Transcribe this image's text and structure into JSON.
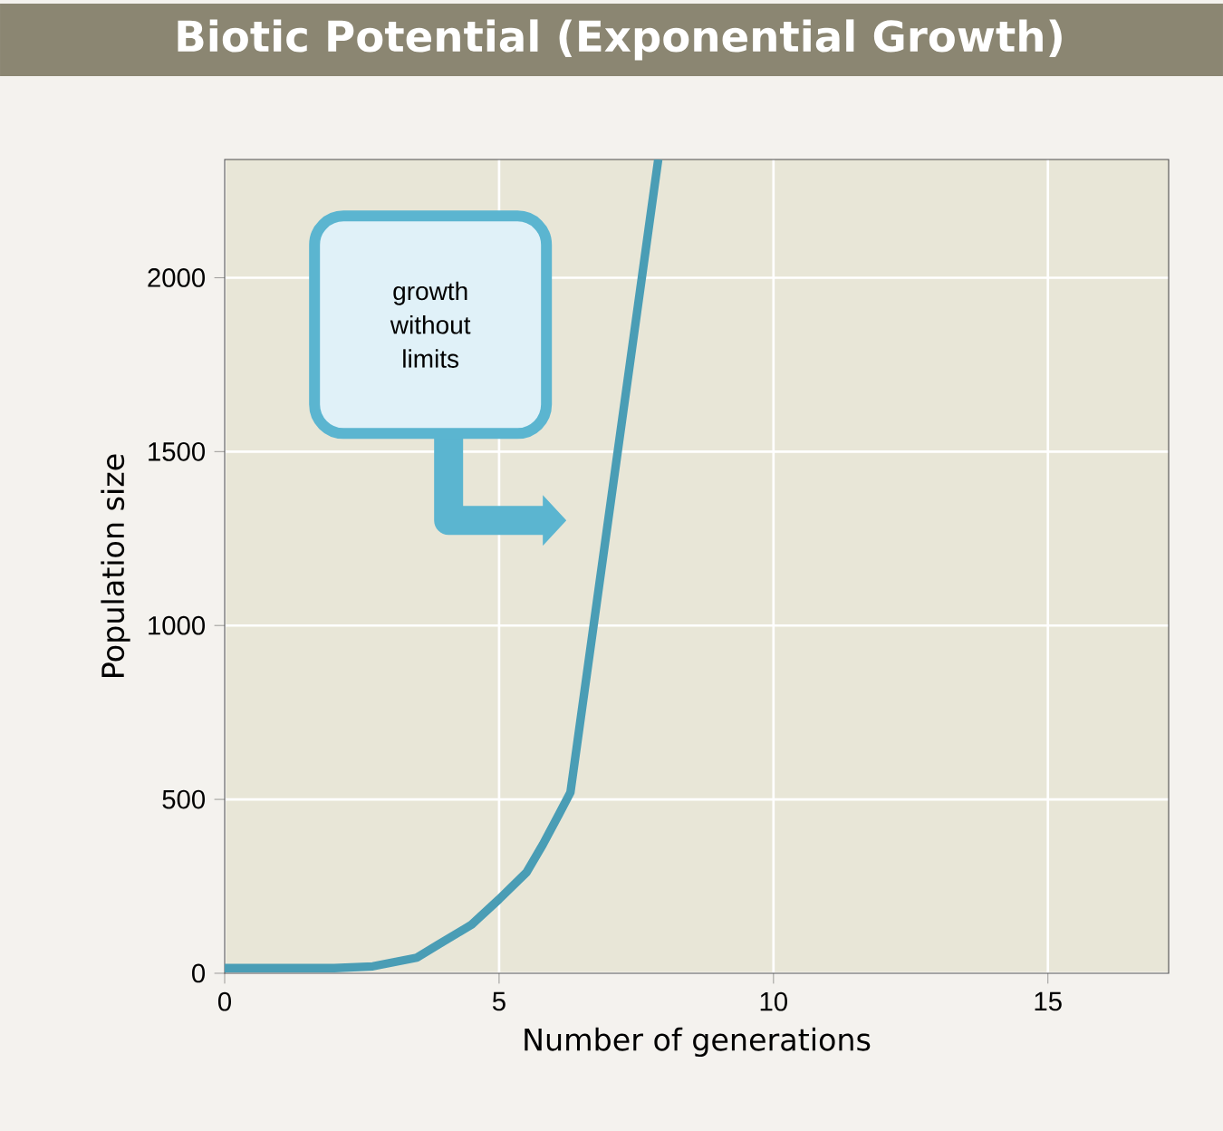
{
  "chart_data": {
    "type": "line",
    "title": "Biotic Potential  (Exponential Growth)",
    "xlabel": "Number of generations",
    "ylabel": "Population size",
    "x": [
      0,
      1,
      2,
      2.7,
      3.5,
      3.9,
      4.5,
      5,
      5.5,
      5.8,
      6.1,
      6.3,
      7.9
    ],
    "series": [
      {
        "color": "#4a9db5",
        "values": [
          15,
          15,
          15,
          20,
          45,
          83,
          140,
          213,
          290,
          371,
          460,
          520,
          2340
        ]
      }
    ],
    "xlim": [
      0,
      17.2
    ],
    "ylim": [
      0,
      2340
    ],
    "xticks": [
      0,
      5,
      10,
      15
    ],
    "yticks": [
      0,
      500,
      1000,
      1500,
      2000
    ],
    "grid": true,
    "marker": "none",
    "line_style": "solid",
    "annotations": [
      "growth without limits"
    ]
  }
}
